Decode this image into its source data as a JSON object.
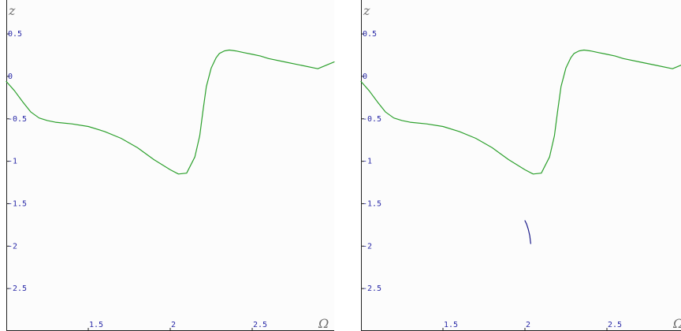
{
  "chart_data": [
    {
      "type": "line",
      "xlabel": "Ω",
      "ylabel": "z",
      "xlim": [
        1.0,
        3.0
      ],
      "ylim": [
        -3.0,
        0.9
      ],
      "xticks": [
        "1.5",
        "2",
        "2.5"
      ],
      "yticks": [
        "0.5",
        "0",
        "-0.5",
        "-1",
        "-1.5",
        "-2",
        "-2.5"
      ],
      "grid": false,
      "colors": {
        "series": "#2ca02c",
        "ticks": "#2a2aa8",
        "axis_var": "#707070"
      },
      "series": [
        {
          "x": [
            1.0,
            1.05,
            1.1,
            1.15,
            1.2,
            1.25,
            1.3,
            1.4,
            1.5,
            1.6,
            1.7,
            1.8,
            1.9,
            2.0,
            2.05,
            2.1,
            2.15,
            2.18,
            2.2,
            2.22,
            2.25,
            2.28,
            2.3,
            2.33,
            2.36,
            2.4,
            2.45,
            2.5,
            2.55,
            2.6,
            2.7,
            2.8,
            2.9,
            3.0
          ],
          "y": [
            -0.06,
            -0.17,
            -0.3,
            -0.42,
            -0.49,
            -0.52,
            -0.54,
            -0.56,
            -0.59,
            -0.65,
            -0.73,
            -0.84,
            -0.98,
            -1.1,
            -1.15,
            -1.14,
            -0.95,
            -0.7,
            -0.4,
            -0.12,
            0.1,
            0.22,
            0.27,
            0.3,
            0.31,
            0.3,
            0.28,
            0.26,
            0.24,
            0.21,
            0.17,
            0.13,
            0.09,
            0.17
          ]
        }
      ]
    },
    {
      "type": "line",
      "xlabel": "Ω",
      "ylabel": "z",
      "xlim": [
        1.0,
        3.0
      ],
      "ylim": [
        -3.0,
        0.9
      ],
      "xticks": [
        "1.5",
        "2",
        "2.5"
      ],
      "yticks": [
        "0.5",
        "0",
        "-0.5",
        "-1",
        "-1.5",
        "-2",
        "-2.5"
      ],
      "grid": false,
      "colors": {
        "series": "#2ca02c",
        "series2": "#1c1c8a",
        "ticks": "#2a2aa8",
        "axis_var": "#707070"
      },
      "series": [
        {
          "x": [
            1.0,
            1.05,
            1.1,
            1.15,
            1.2,
            1.25,
            1.3,
            1.4,
            1.5,
            1.6,
            1.7,
            1.8,
            1.9,
            2.0,
            2.05,
            2.1,
            2.15,
            2.18,
            2.2,
            2.22,
            2.25,
            2.28,
            2.3,
            2.33,
            2.36,
            2.4,
            2.45,
            2.5,
            2.55,
            2.6,
            2.7,
            2.8,
            2.9,
            3.0
          ],
          "y": [
            -0.06,
            -0.17,
            -0.3,
            -0.42,
            -0.49,
            -0.52,
            -0.54,
            -0.56,
            -0.59,
            -0.65,
            -0.73,
            -0.84,
            -0.98,
            -1.1,
            -1.15,
            -1.14,
            -0.95,
            -0.7,
            -0.4,
            -0.12,
            0.1,
            0.22,
            0.27,
            0.3,
            0.31,
            0.3,
            0.28,
            0.26,
            0.24,
            0.21,
            0.17,
            0.13,
            0.09,
            0.17
          ]
        },
        {
          "x": [
            2.0,
            2.01,
            2.02,
            2.03,
            2.035
          ],
          "y": [
            -1.7,
            -1.74,
            -1.8,
            -1.88,
            -1.97
          ]
        }
      ]
    }
  ]
}
